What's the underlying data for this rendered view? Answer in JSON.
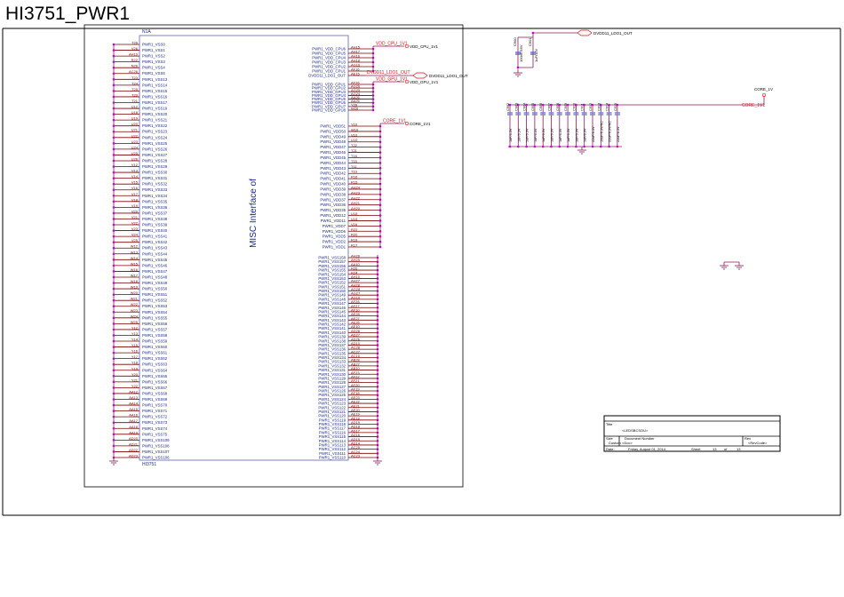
{
  "sheet_title": "HI3751_PWR1",
  "part": {
    "ref": "N1A",
    "name": "HI3751",
    "desc": "MISC Interface of"
  },
  "colors": {
    "wire": "#8a1a5a",
    "pin": "#7a0000",
    "text": "#1a2a8a",
    "net": "#e01010",
    "junction": "#d000d0",
    "border": "#000000"
  },
  "left_pins": {
    "names": [
      "PWR1_VSS0",
      "PWR1_VSS1",
      "PWR1_VSS2",
      "PWR1_VSS3",
      "PWR1_VSS4",
      "PWR1_VSS5",
      "PWR1_VSS13",
      "PWR1_VSS14",
      "PWR1_VSS15",
      "PWR1_VSS16",
      "PWR1_VSS17",
      "PWR1_VSS19",
      "PWR1_VSS20",
      "PWR1_VSS21",
      "PWR1_VSS22",
      "PWR1_VSS23",
      "PWR1_VSS24",
      "PWR1_VSS25",
      "PWR1_VSS26",
      "PWR1_VSS27",
      "PWR1_VSS28",
      "PWR1_VSS29",
      "PWR1_VSS30",
      "PWR1_VSS31",
      "PWR1_VSS32",
      "PWR1_VSS33",
      "PWR1_VSS34",
      "PWR1_VSS35",
      "PWR1_VSS36",
      "PWR1_VSS37",
      "PWR1_VSS38",
      "PWR1_VSS39",
      "PWR1_VSS40",
      "PWR1_VSS41",
      "PWR1_VSS42",
      "PWR1_VSS43",
      "PWR1_VSS44",
      "PWR1_VSS45",
      "PWR1_VSS46",
      "PWR1_VSS47",
      "PWR1_VSS48",
      "PWR1_VSS49",
      "PWR1_VSS50",
      "PWR1_VSS51",
      "PWR1_VSS52",
      "PWR1_VSS53",
      "PWR1_VSS54",
      "PWR1_VSS55",
      "PWR1_VSS56",
      "PWR1_VSS57",
      "PWR1_VSS58",
      "PWR1_VSS59",
      "PWR1_VSS60",
      "PWR1_VSS61",
      "PWR1_VSS62",
      "PWR1_VSS63",
      "PWR1_VSS64",
      "PWR1_VSS65",
      "PWR1_VSS66",
      "PWR1_VSS67",
      "PWR1_VSS68",
      "PWR1_VSS69",
      "PWR1_VSS70",
      "PWR1_VSS71",
      "PWR1_VSS72",
      "PWR1_VSS73",
      "PWR1_VSS74",
      "PWR1_VSS75",
      "PWR1_VSS109",
      "PWR1_VSS108",
      "PWR1_VSS107",
      "PWR1_VSS106"
    ],
    "numbers": [
      "T26",
      "V26",
      "AH19",
      "R22",
      "N26",
      "AC26",
      "T23",
      "T24",
      "T25",
      "T20",
      "T21",
      "U12",
      "U18",
      "U19",
      "U20",
      "U21",
      "U22",
      "U23",
      "U24",
      "U25",
      "U26",
      "V12",
      "V13",
      "V14",
      "V15",
      "V16",
      "V17",
      "V18",
      "V19",
      "V20",
      "V21",
      "V22",
      "V23",
      "V24",
      "V25",
      "W12",
      "W13",
      "W14",
      "W15",
      "W16",
      "W17",
      "W18",
      "W19",
      "W20",
      "W21",
      "W22",
      "W23",
      "W24",
      "W25",
      "Y12",
      "Y13",
      "Y14",
      "Y15",
      "Y16",
      "Y17",
      "Y18",
      "Y19",
      "Y20",
      "Y21",
      "Y22",
      "AA12",
      "AA13",
      "AA14",
      "AA15",
      "AA16",
      "AA17",
      "AA18",
      "AA19",
      "AD20",
      "AD21",
      "AD22",
      "AD23"
    ]
  },
  "cpu_pins": {
    "names": [
      "PWR1_VDD_CPU6",
      "PWR1_VDD_CPU5",
      "PWR1_VDD_CPU4",
      "PWR1_VDD_CPU3",
      "PWR1_VDD_CPU2",
      "PWR1_VDD_CPU1",
      "DVDD11_LDO1_OUT"
    ],
    "numbers": [
      "AH15",
      "AH17",
      "AH16",
      "AH18",
      "AG16",
      "AF16",
      "AE15"
    ]
  },
  "gpu_pins": {
    "names": [
      "PWR1_VDD_GPU1",
      "PWR1_VDD_GPU2",
      "PWR1_VDD_GPU3",
      "PWR1_VDD_GPU4",
      "PWR1_VDD_GPU5",
      "PWR1_VDD_GPU6",
      "PWR1_VDD_GPU7",
      "PWR1_VDD_GPU8"
    ],
    "numbers": [
      "AF26",
      "AG26",
      "AG25",
      "AG24",
      "AA26",
      "AA25",
      "Y26",
      "W26"
    ]
  },
  "core_pins": {
    "names": [
      "PWR1_VDD51",
      "PWR1_VDD50",
      "PWR1_VDD49",
      "PWR1_VDD48",
      "PWR1_VDD47",
      "PWR1_VDD46",
      "PWR1_VDD45",
      "PWR1_VDD44",
      "PWR1_VDD43",
      "PWR1_VDD42",
      "PWR1_VDD41",
      "PWR1_VDD40",
      "PWR1_VDD39",
      "PWR1_VDD38",
      "PWR1_VDD37",
      "PWR1_VDD36",
      "PWR1_VDD35",
      "PWR1_VDD12",
      "PWR1_VDD11",
      "PWR1_VDD7",
      "PWR1_VDD6",
      "PWR1_VDD5",
      "PWR1_VDD2",
      "PWR1_VDD1"
    ],
    "numbers": [
      "Y10",
      "W10",
      "V10",
      "U10",
      "T22",
      "T21",
      "T16",
      "T15",
      "T11",
      "T10",
      "R16",
      "R15",
      "AH24",
      "AH23",
      "AH22",
      "AH21",
      "AH20",
      "U15",
      "U14",
      "V16",
      "R22",
      "R20",
      "R19",
      "R17"
    ]
  },
  "vss_right_pins": {
    "names": [
      "PWR1_VSS158",
      "PWR1_VSS157",
      "PWR1_VSS156",
      "PWR1_VSS155",
      "PWR1_VSS154",
      "PWR1_VSS153",
      "PWR1_VSS152",
      "PWR1_VSS151",
      "PWR1_VSS150",
      "PWR1_VSS149",
      "PWR1_VSS148",
      "PWR1_VSS147",
      "PWR1_VSS146",
      "PWR1_VSS145",
      "PWR1_VSS144",
      "PWR1_VSS143",
      "PWR1_VSS142",
      "PWR1_VSS141",
      "PWR1_VSS140",
      "PWR1_VSS139",
      "PWR1_VSS138",
      "PWR1_VSS137",
      "PWR1_VSS136",
      "PWR1_VSS135",
      "PWR1_VSS134",
      "PWR1_VSS133",
      "PWR1_VSS132",
      "PWR1_VSS131",
      "PWR1_VSS130",
      "PWR1_VSS129",
      "PWR1_VSS128",
      "PWR1_VSS127",
      "PWR1_VSS126",
      "PWR1_VSS125",
      "PWR1_VSS124",
      "PWR1_VSS123",
      "PWR1_VSS122",
      "PWR1_VSS121",
      "PWR1_VSS120",
      "PWR1_VSS119",
      "PWR1_VSS118",
      "PWR1_VSS117",
      "PWR1_VSS116",
      "PWR1_VSS115",
      "PWR1_VSS114",
      "PWR1_VSS113",
      "PWR1_VSS112",
      "PWR1_VSS111",
      "PWR1_VSS110"
    ],
    "numbers": [
      "AH26",
      "AH25",
      "AA10",
      "R26",
      "R24",
      "AH10",
      "AH27",
      "AH28",
      "AG28",
      "AG27",
      "AG10",
      "AF28",
      "AF27",
      "AF10",
      "AE28",
      "AE27",
      "AE26",
      "AE10",
      "AD28",
      "AD27",
      "AD26",
      "AD10",
      "AC28",
      "AC27",
      "AC10",
      "AB28",
      "AB27",
      "AB10",
      "AF23",
      "AF22",
      "AF21",
      "AF20",
      "AF19",
      "AF18",
      "AE23",
      "AE22",
      "AE21",
      "AE20",
      "AE19",
      "AE18",
      "AD19",
      "AD18",
      "AD17",
      "AD16",
      "AD15",
      "AD14",
      "AC25",
      "AC24",
      "AC23"
    ]
  },
  "nets": {
    "cpu": "VDD_CPU_1V1",
    "ldo": "DVDD11_LDO1_OUT",
    "gpu": "VDD_GPU_1V1",
    "core": "CORE_1V1"
  },
  "ldo_caps": [
    {
      "ref": "C900",
      "value": "100nF/16V"
    },
    {
      "ref": "C901",
      "value": "1uF/10V"
    }
  ],
  "core_caps": [
    {
      "ref": "C902",
      "value": "1uF/6.3V"
    },
    {
      "ref": "C903",
      "value": "1uF/6.3V"
    },
    {
      "ref": "C904",
      "value": "1uF/6.3V"
    },
    {
      "ref": "C905",
      "value": "1uF/6.3V"
    },
    {
      "ref": "C906",
      "value": "1uF/6.3V"
    },
    {
      "ref": "C907",
      "value": "1uF/6.3V"
    },
    {
      "ref": "C908",
      "value": "1uF/6.3V"
    },
    {
      "ref": "C909",
      "value": "1uF/6.3V"
    },
    {
      "ref": "C910",
      "value": "1uF/6.3V"
    },
    {
      "ref": "C911",
      "value": "1uF/6.3V"
    },
    {
      "ref": "C912",
      "value": "22uF/6.3V"
    },
    {
      "ref": "C913",
      "value": "10uF/6.3V/NC"
    },
    {
      "ref": "C914",
      "value": "22uF/6.3V/NC"
    },
    {
      "ref": "C915",
      "value": "22uF/6.3V"
    }
  ],
  "core_port": "CORE_1V",
  "title_block": {
    "title_label": "Title",
    "title": "<LEDSBCSOU>",
    "size_label": "Size",
    "size": "Custom",
    "docnum_label": "Document Number",
    "docnum": "<Doc>",
    "rev_label": "Rev",
    "rev": "<RevCode>",
    "date_label": "Date:",
    "date": "Friday, August 01, 2014",
    "sheet_label": "Sheet",
    "sheet": "13",
    "of_label": "of",
    "total": "13"
  }
}
